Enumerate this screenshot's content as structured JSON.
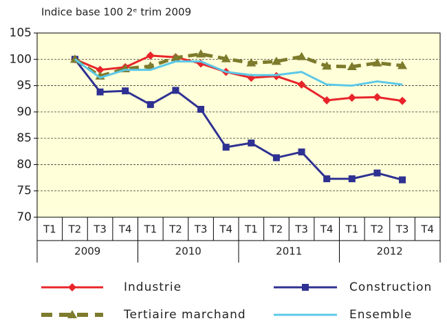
{
  "chart_data": {
    "type": "line",
    "ylabel": "Indice base 100 2ᵉ trim 2009",
    "categories": [
      "T1",
      "T2",
      "T3",
      "T4",
      "T1",
      "T2",
      "T3",
      "T4",
      "T1",
      "T2",
      "T3",
      "T4",
      "T1",
      "T2",
      "T3",
      "T4"
    ],
    "years": [
      "2009",
      "2010",
      "2011",
      "2012"
    ],
    "ylim": [
      70,
      105
    ],
    "yticks": [
      70,
      75,
      80,
      85,
      90,
      95,
      100,
      105
    ],
    "grid": true,
    "background": "#ffffd9",
    "series": [
      {
        "name": "Industrie",
        "color": "#e8242a",
        "marker": "diamond",
        "values": [
          null,
          100,
          98,
          98.5,
          100.7,
          100.4,
          99.2,
          97.6,
          96.5,
          96.8,
          95.2,
          92.2,
          92.7,
          92.8,
          92.1,
          null
        ]
      },
      {
        "name": "Construction",
        "color": "#2e3192",
        "marker": "square",
        "values": [
          null,
          100,
          93.8,
          94,
          91.4,
          94.1,
          90.5,
          83.3,
          84.1,
          81.3,
          82.4,
          77.3,
          77.3,
          78.4,
          77.1,
          null
        ]
      },
      {
        "name": "Tertiaire marchand",
        "color": "#7d7b2c",
        "marker": "triangle",
        "dashed": true,
        "values": [
          null,
          100,
          96.8,
          98.2,
          98.7,
          100.3,
          101,
          100.1,
          99.3,
          99.6,
          100.5,
          98.7,
          98.6,
          99.3,
          98.8,
          null
        ]
      },
      {
        "name": "Ensemble",
        "color": "#5bc8e8",
        "values": [
          null,
          100,
          96.5,
          98,
          98,
          99.6,
          99.6,
          97.6,
          97,
          97,
          97.6,
          95.2,
          95,
          95.8,
          95.2,
          null
        ]
      }
    ]
  }
}
